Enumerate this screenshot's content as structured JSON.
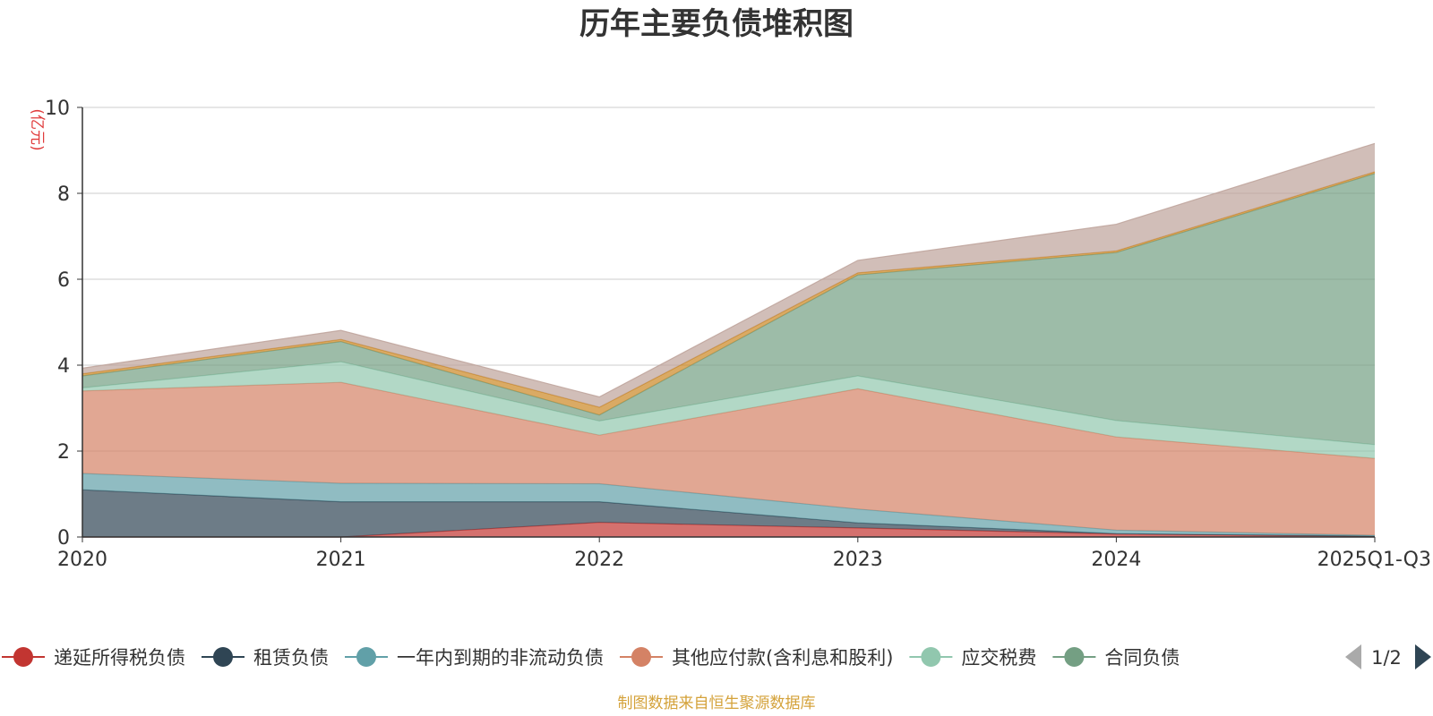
{
  "chart_data": {
    "type": "area",
    "stacked": true,
    "title": "历年主要负债堆积图",
    "unit_label": "(亿元)",
    "x": [
      "2020",
      "2021",
      "2022",
      "2023",
      "2024",
      "2025Q1-Q3"
    ],
    "ylim": [
      0,
      10
    ],
    "yticks": [
      "0",
      "2",
      "4",
      "6",
      "8",
      "10"
    ],
    "grid": true,
    "legend_position": "bottom",
    "series": [
      {
        "name": "递延所得税负债",
        "color": "#c23531",
        "values": [
          0.0,
          0.0,
          0.34,
          0.21,
          0.07,
          0.02
        ]
      },
      {
        "name": "租赁负债",
        "color": "#2f4554",
        "values": [
          1.1,
          0.82,
          0.48,
          0.12,
          0.01,
          0.0
        ]
      },
      {
        "name": "一年内到期的非流动负债",
        "color": "#61a0a8",
        "values": [
          0.38,
          0.43,
          0.42,
          0.32,
          0.08,
          0.02
        ]
      },
      {
        "name": "其他应付款(含利息和股利)",
        "color": "#d48265",
        "values": [
          1.92,
          2.35,
          1.13,
          2.8,
          2.17,
          1.79
        ]
      },
      {
        "name": "应交税费",
        "color": "#91c7ae",
        "values": [
          0.07,
          0.48,
          0.33,
          0.3,
          0.38,
          0.32
        ]
      },
      {
        "name": "合同负债",
        "color": "#749f83",
        "values": [
          0.28,
          0.47,
          0.14,
          2.35,
          3.91,
          6.31
        ]
      },
      {
        "name": "",
        "color": "#ca8622",
        "values": [
          0.05,
          0.05,
          0.18,
          0.05,
          0.04,
          0.04
        ]
      },
      {
        "name": "",
        "color": "#bda29a",
        "values": [
          0.13,
          0.21,
          0.24,
          0.29,
          0.62,
          0.66
        ]
      }
    ]
  },
  "legend": {
    "items": [
      "递延所得税负债",
      "租赁负债",
      "一年内到期的非流动负债",
      "其他应付款(含利息和股利)",
      "应交税费",
      "合同负债"
    ],
    "page": "1/2"
  },
  "source": "制图数据来自恒生聚源数据库",
  "icons": {
    "prev": "triangle-left-icon",
    "next": "triangle-right-icon"
  },
  "colors": {
    "inactive_arrow": "#aaaaaa",
    "active_arrow": "#2f4554",
    "axis": "#333333",
    "grid": "#cccccc"
  }
}
